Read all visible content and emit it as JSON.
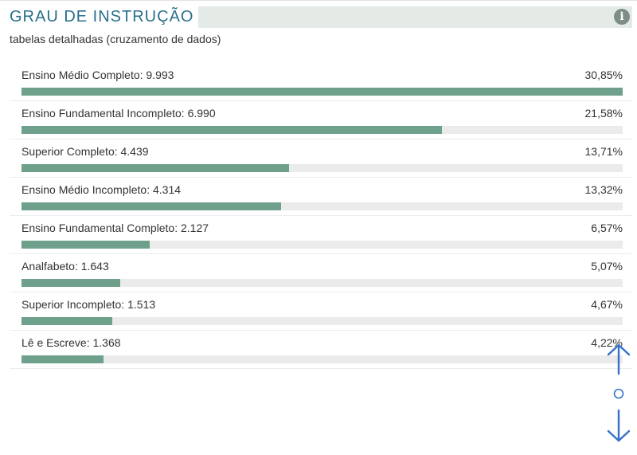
{
  "header": {
    "title": "GRAU DE INSTRUÇÃO",
    "info_icon": "info-icon",
    "subtitle": "tabelas detalhadas (cruzamento de dados)"
  },
  "colors": {
    "accent": "#2a6f8c",
    "bar_fill": "#6ea08c",
    "bar_track": "#ebebeb",
    "header_bg": "#e4ebe6",
    "nav_arrows": "#3a73c8"
  },
  "rows": [
    {
      "label": "Ensino Médio Completo: 9.993",
      "percent": "30,85%",
      "share": 30.85
    },
    {
      "label": "Ensino Fundamental Incompleto: 6.990",
      "percent": "21,58%",
      "share": 21.58
    },
    {
      "label": "Superior Completo: 4.439",
      "percent": "13,71%",
      "share": 13.71
    },
    {
      "label": "Ensino Médio Incompleto: 4.314",
      "percent": "13,32%",
      "share": 13.32
    },
    {
      "label": "Ensino Fundamental Completo: 2.127",
      "percent": "6,57%",
      "share": 6.57
    },
    {
      "label": "Analfabeto: 1.643",
      "percent": "5,07%",
      "share": 5.07
    },
    {
      "label": "Superior Incompleto: 1.513",
      "percent": "4,67%",
      "share": 4.67
    },
    {
      "label": "Lê e Escreve: 1.368",
      "percent": "4,22%",
      "share": 4.22
    }
  ],
  "scroll_nav": {
    "up_icon": "arrow-up-icon",
    "dot_icon": "circle-dot-icon",
    "down_icon": "arrow-down-icon"
  }
}
